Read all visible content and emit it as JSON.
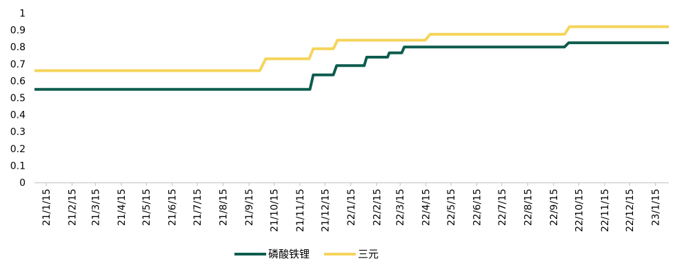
{
  "chart_data": {
    "type": "line",
    "title": "",
    "xlabel": "",
    "ylabel": "",
    "ylim": [
      0,
      1
    ],
    "yticks": [
      "0",
      "0.1",
      "0.2",
      "0.3",
      "0.4",
      "0.5",
      "0.6",
      "0.7",
      "0.8",
      "0.9",
      "1"
    ],
    "x_tick_labels": [
      "21/1/15",
      "21/2/15",
      "21/3/15",
      "21/4/15",
      "21/5/15",
      "21/6/15",
      "21/7/15",
      "21/8/15",
      "21/9/15",
      "21/10/15",
      "21/11/15",
      "21/12/15",
      "22/1/15",
      "22/2/15",
      "22/3/15",
      "22/4/15",
      "22/5/15",
      "22/6/15",
      "22/7/15",
      "22/8/15",
      "22/9/15",
      "22/10/15",
      "22/11/15",
      "22/12/15",
      "23/1/15"
    ],
    "grid": false,
    "legend_position": "bottom",
    "series": [
      {
        "name": "磷酸铁锂",
        "color": "#0d5c4e",
        "x": [
          "21/1/1",
          "21/11/27",
          "21/12/1",
          "21/12/25",
          "21/12/29",
          "22/1/31",
          "22/2/3",
          "22/2/28",
          "22/3/2",
          "22/3/17",
          "22/3/20",
          "22/4/12",
          "22/4/20",
          "22/9/28",
          "22/10/3",
          "23/1/31"
        ],
        "values": [
          0.55,
          0.55,
          0.635,
          0.635,
          0.69,
          0.69,
          0.74,
          0.74,
          0.765,
          0.765,
          0.8,
          0.8,
          0.8,
          0.8,
          0.825,
          0.825
        ]
      },
      {
        "name": "三元",
        "color": "#f5d45a",
        "x": [
          "21/1/1",
          "21/9/28",
          "21/10/5",
          "21/11/26",
          "21/12/1",
          "21/12/25",
          "21/12/30",
          "22/4/14",
          "22/4/20",
          "22/9/28",
          "22/10/4",
          "23/1/31"
        ],
        "values": [
          0.66,
          0.66,
          0.73,
          0.73,
          0.79,
          0.79,
          0.84,
          0.84,
          0.875,
          0.875,
          0.92,
          0.92
        ]
      }
    ]
  }
}
